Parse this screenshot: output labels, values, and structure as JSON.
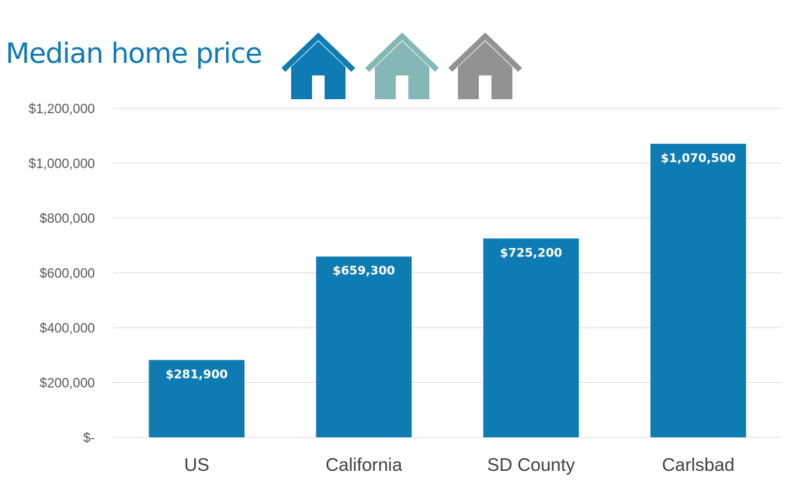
{
  "title": "Median home price",
  "icons": [
    {
      "name": "house-icon-blue",
      "color": "#0e7bb3"
    },
    {
      "name": "house-icon-teal",
      "color": "#84b8b7"
    },
    {
      "name": "house-icon-gray",
      "color": "#929292"
    }
  ],
  "chart_data": {
    "type": "bar",
    "title": "Median home price",
    "categories": [
      "US",
      "California",
      "SD County",
      "Carlsbad"
    ],
    "values": [
      281900,
      659300,
      725200,
      1070500
    ],
    "data_labels": [
      "$281,900",
      "$659,300",
      "$725,200",
      "$1,070,500"
    ],
    "ylim": [
      0,
      1200000
    ],
    "yticks": [
      0,
      200000,
      400000,
      600000,
      800000,
      1000000,
      1200000
    ],
    "ytick_labels": [
      "$-",
      "$200,000",
      "$400,000",
      "$600,000",
      "$800,000",
      "$1,000,000",
      "$1,200,000"
    ],
    "grid": true,
    "legend": "none",
    "bar_color": "#0e7bb3",
    "grid_color": "#d9d9d9"
  }
}
